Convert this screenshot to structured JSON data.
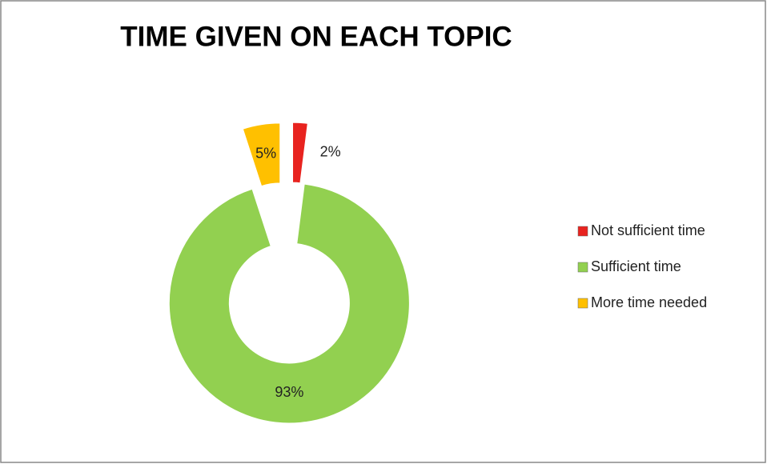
{
  "chart_data": {
    "type": "doughnut",
    "title": "TIME GIVEN ON EACH TOPIC",
    "categories": [
      "Not sufficient time",
      "Sufficient time",
      "More time needed"
    ],
    "values": [
      2,
      93,
      5
    ],
    "value_labels": [
      "2%",
      "93%",
      "5%"
    ],
    "colors": [
      "#e8231f",
      "#92d050",
      "#ffc000"
    ],
    "legend": "right"
  }
}
